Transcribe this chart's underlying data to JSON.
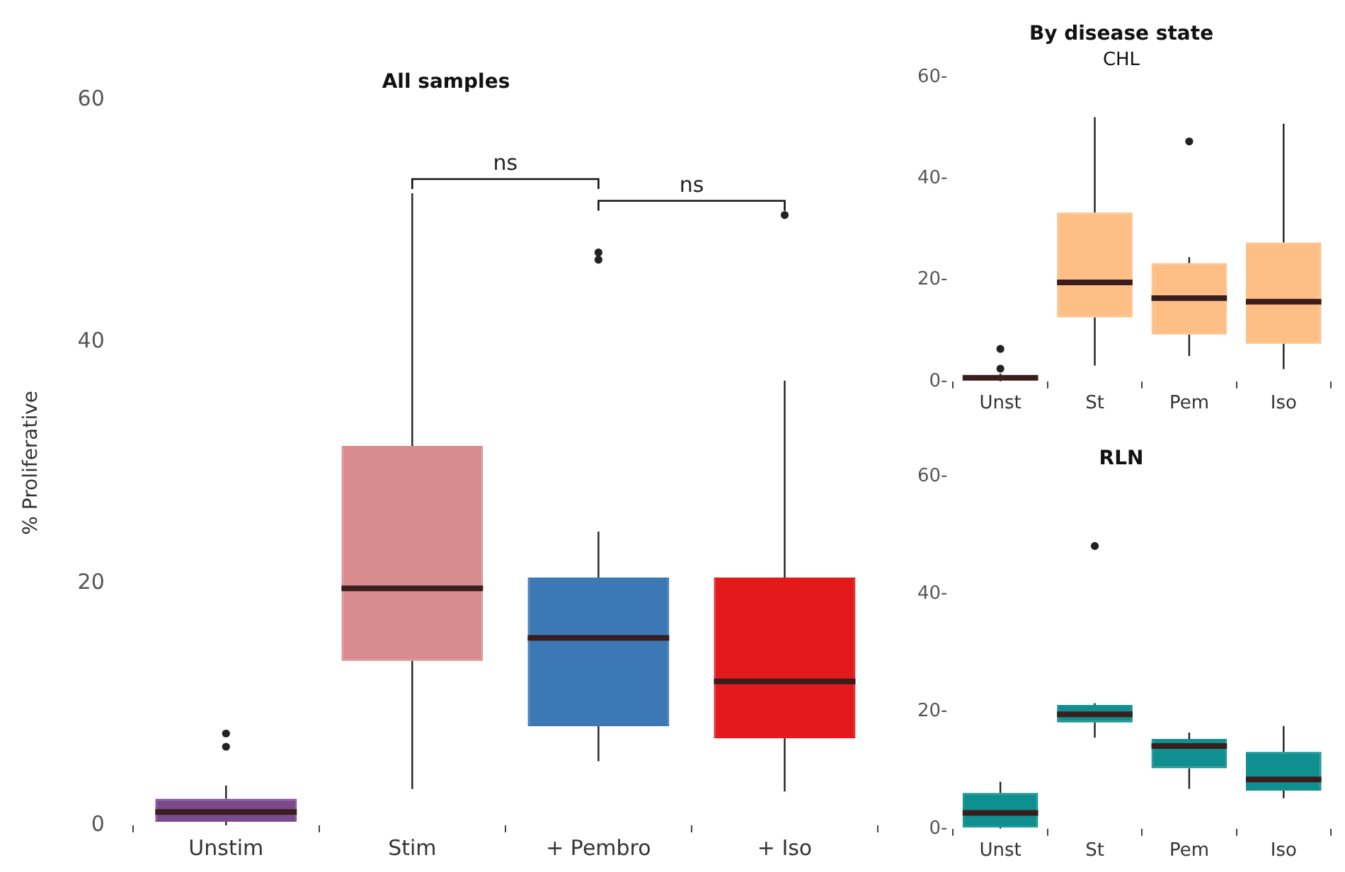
{
  "chart_data": [
    {
      "type": "box",
      "title": "All samples",
      "ylabel": "% Proliferative",
      "categories": [
        "Unstim",
        "Stim",
        "+ Pembro",
        "+ Iso"
      ],
      "colors": [
        "#7b4a8c",
        "#d98c8f",
        "#3c78b4",
        "#e31a1c"
      ],
      "boxes": [
        {
          "low": 0,
          "q1": 0.3,
          "median": 1.1,
          "q3": 2.2,
          "high": 3.3,
          "outliers": [
            6.5,
            7.6
          ]
        },
        {
          "low": 3.0,
          "q1": 13.6,
          "median": 19.6,
          "q3": 31.4,
          "high": 52.3
        },
        {
          "low": 5.3,
          "q1": 8.2,
          "median": 15.5,
          "q3": 20.5,
          "high": 24.3,
          "outliers": [
            46.8,
            47.4
          ]
        },
        {
          "low": 2.8,
          "q1": 7.2,
          "median": 11.9,
          "q3": 20.5,
          "high": 36.8,
          "outliers": [
            50.5
          ]
        }
      ],
      "ylim": [
        0,
        60
      ],
      "yticks": [
        0,
        20,
        40,
        60
      ],
      "grid": false,
      "legend": false,
      "annotations": [
        "ns",
        "ns"
      ]
    },
    {
      "type": "box",
      "title": "By disease state",
      "subtitle": "CHL",
      "categories": [
        "Unst",
        "St",
        "Pem",
        "Iso"
      ],
      "colors": [
        "#fdbf85",
        "#fdbf85",
        "#fdbf85",
        "#fdbf85"
      ],
      "boxes": [
        {
          "low": 0,
          "q1": 0.2,
          "median": 0.7,
          "q3": 1.2,
          "high": 1.5,
          "outliers": [
            2.5,
            6.4
          ]
        },
        {
          "low": 3.1,
          "q1": 12.6,
          "median": 19.5,
          "q3": 33.3,
          "high": 52.1
        },
        {
          "low": 5.0,
          "q1": 9.2,
          "median": 16.4,
          "q3": 23.3,
          "high": 24.5,
          "outliers": [
            47.3
          ]
        },
        {
          "low": 2.4,
          "q1": 7.4,
          "median": 15.7,
          "q3": 27.4,
          "high": 50.8
        }
      ],
      "ylim": [
        0,
        60
      ],
      "yticks": [
        {
          "value": 0,
          "label": "0-"
        },
        {
          "value": 20,
          "label": "20-"
        },
        {
          "value": 40,
          "label": "40-"
        },
        {
          "value": 60,
          "label": "60-"
        }
      ],
      "grid": false,
      "legend": false
    },
    {
      "type": "box",
      "title": "RLN",
      "categories": [
        "Unst",
        "St",
        "Pem",
        "Iso"
      ],
      "colors": [
        "#0f8f8f",
        "#0f8f8f",
        "#0f8f8f",
        "#0f8f8f"
      ],
      "boxes": [
        {
          "low": 0,
          "q1": 0.2,
          "median": 2.7,
          "q3": 6.1,
          "high": 8.0
        },
        {
          "low": 15.5,
          "q1": 18.1,
          "median": 19.5,
          "q3": 21.1,
          "high": 21.4,
          "outliers": [
            48.2
          ]
        },
        {
          "low": 6.8,
          "q1": 10.3,
          "median": 14.1,
          "q3": 15.3,
          "high": 16.4
        },
        {
          "low": 5.2,
          "q1": 6.5,
          "median": 8.4,
          "q3": 13.1,
          "high": 17.5
        }
      ],
      "ylim": [
        0,
        60
      ],
      "yticks": [
        {
          "value": 0,
          "label": "0-"
        },
        {
          "value": 20,
          "label": "20-"
        },
        {
          "value": 40,
          "label": "40-"
        },
        {
          "value": 60,
          "label": "60-"
        }
      ],
      "grid": false,
      "legend": false
    }
  ]
}
